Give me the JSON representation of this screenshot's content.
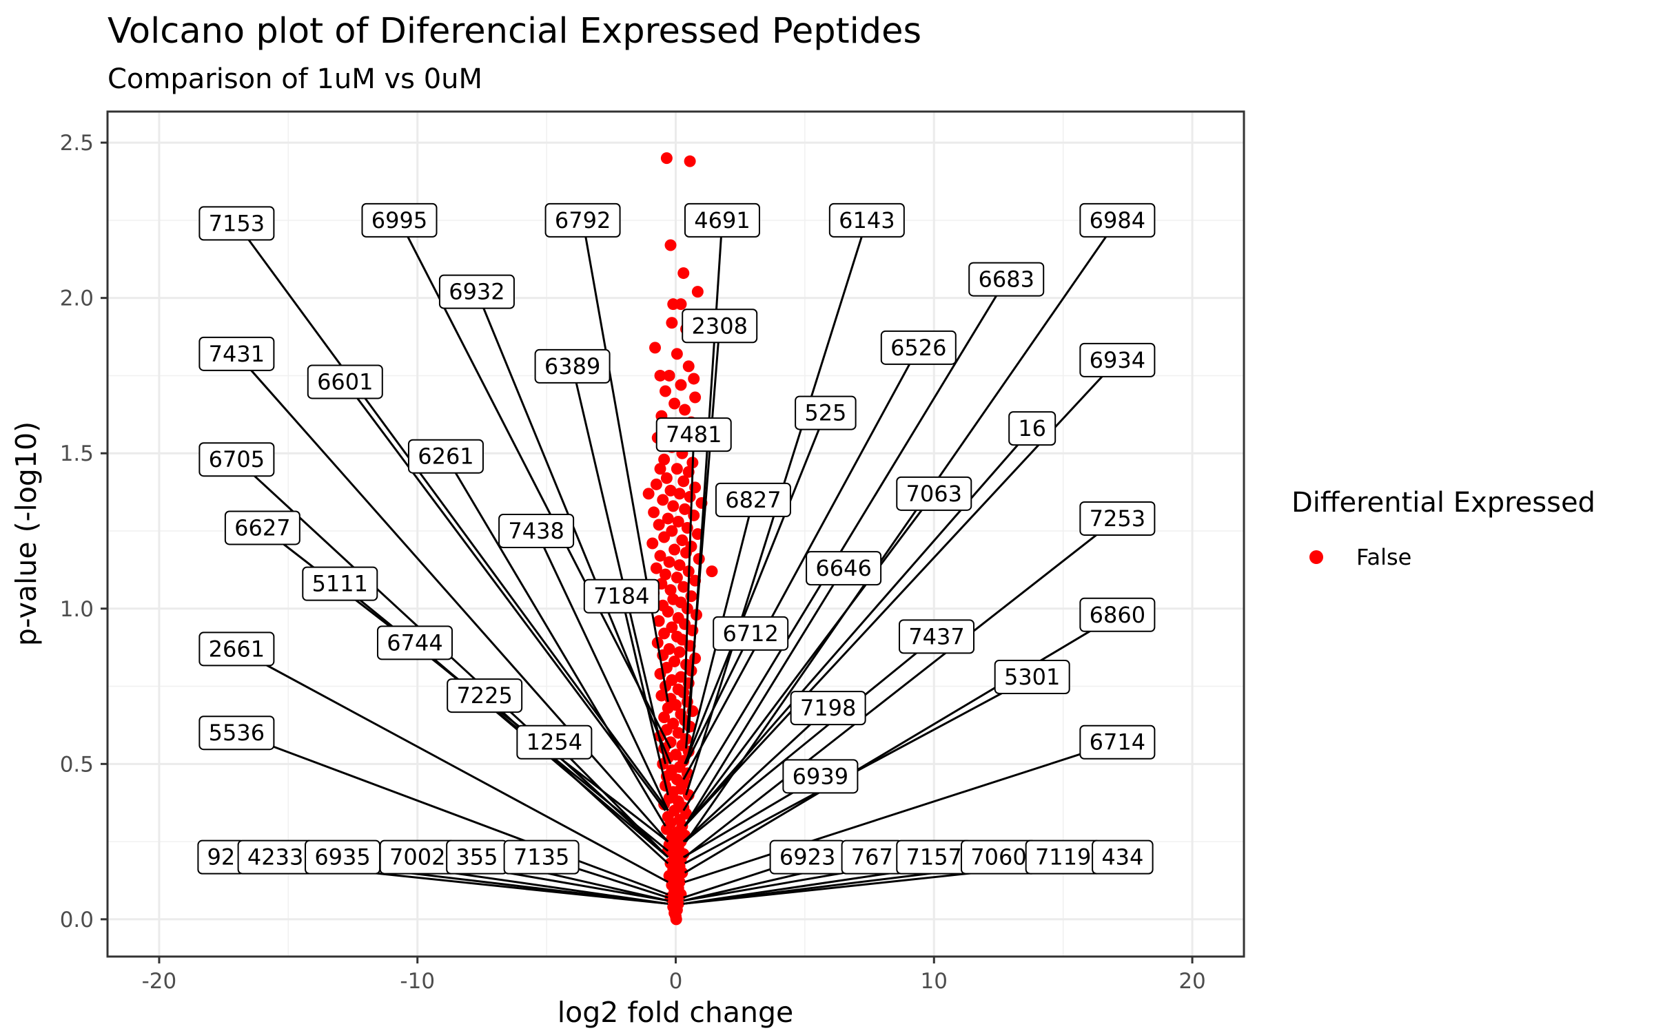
{
  "chart_data": {
    "type": "scatter",
    "title": "Volcano plot of Diferencial Expressed Peptides",
    "subtitle": "Comparison of 1uM vs 0uM",
    "xlabel": "log2 fold change",
    "ylabel": "p-value (-log10)",
    "xlim": [
      -22,
      22
    ],
    "ylim": [
      -0.12,
      2.6
    ],
    "x_ticks": [
      -20,
      -10,
      0,
      10,
      20
    ],
    "x_tick_labels": [
      "-20",
      "-10",
      "0",
      "10",
      "20"
    ],
    "y_ticks": [
      0.0,
      0.5,
      1.0,
      1.5,
      2.0,
      2.5
    ],
    "y_tick_labels": [
      "0.0",
      "0.5",
      "1.0",
      "1.5",
      "2.0",
      "2.5"
    ],
    "grid": true,
    "legend": {
      "title": "Differential Expressed",
      "position": "right",
      "entries": [
        {
          "label": "False",
          "color": "#ff0000"
        }
      ]
    },
    "series": [
      {
        "name": "False",
        "color": "#ff0000",
        "points": [
          [
            -0.35,
            2.45
          ],
          [
            0.55,
            2.44
          ],
          [
            -0.2,
            2.17
          ],
          [
            0.3,
            2.08
          ],
          [
            0.85,
            2.02
          ],
          [
            -0.1,
            1.98
          ],
          [
            0.2,
            1.98
          ],
          [
            -0.15,
            1.92
          ],
          [
            0.4,
            1.9
          ],
          [
            -0.8,
            1.84
          ],
          [
            0.05,
            1.82
          ],
          [
            0.5,
            1.78
          ],
          [
            -0.6,
            1.75
          ],
          [
            -0.25,
            1.75
          ],
          [
            0.7,
            1.74
          ],
          [
            0.2,
            1.72
          ],
          [
            -0.4,
            1.7
          ],
          [
            0.75,
            1.68
          ],
          [
            -0.05,
            1.66
          ],
          [
            0.35,
            1.64
          ],
          [
            -0.55,
            1.62
          ],
          [
            0.6,
            1.6
          ],
          [
            -0.3,
            1.58
          ],
          [
            0.1,
            1.57
          ],
          [
            -0.7,
            1.55
          ],
          [
            0.45,
            1.54
          ],
          [
            -0.15,
            1.52
          ],
          [
            0.25,
            1.5
          ],
          [
            -0.45,
            1.48
          ],
          [
            0.65,
            1.47
          ],
          [
            -0.6,
            1.45
          ],
          [
            0.05,
            1.45
          ],
          [
            0.5,
            1.44
          ],
          [
            -0.35,
            1.42
          ],
          [
            0.3,
            1.41
          ],
          [
            -0.75,
            1.4
          ],
          [
            0.75,
            1.39
          ],
          [
            -0.2,
            1.38
          ],
          [
            0.15,
            1.37
          ],
          [
            -1.05,
            1.37
          ],
          [
            0.55,
            1.36
          ],
          [
            -0.5,
            1.35
          ],
          [
            1.0,
            1.34
          ],
          [
            -0.1,
            1.33
          ],
          [
            0.35,
            1.32
          ],
          [
            -0.85,
            1.31
          ],
          [
            0.7,
            1.3
          ],
          [
            -0.3,
            1.29
          ],
          [
            0.1,
            1.28
          ],
          [
            -0.65,
            1.27
          ],
          [
            0.45,
            1.26
          ],
          [
            -0.15,
            1.25
          ],
          [
            0.85,
            1.24
          ],
          [
            -0.45,
            1.23
          ],
          [
            0.25,
            1.22
          ],
          [
            -0.9,
            1.21
          ],
          [
            0.6,
            1.2
          ],
          [
            -0.05,
            1.19
          ],
          [
            0.4,
            1.18
          ],
          [
            -0.6,
            1.17
          ],
          [
            0.9,
            1.16
          ],
          [
            -0.25,
            1.15
          ],
          [
            0.15,
            1.14
          ],
          [
            -0.75,
            1.13
          ],
          [
            1.4,
            1.12
          ],
          [
            0.5,
            1.12
          ],
          [
            -0.4,
            1.11
          ],
          [
            0.05,
            1.1
          ],
          [
            0.75,
            1.09
          ],
          [
            -0.55,
            1.08
          ],
          [
            0.3,
            1.07
          ],
          [
            -0.2,
            1.06
          ],
          [
            -0.85,
            1.05
          ],
          [
            0.6,
            1.04
          ],
          [
            -0.1,
            1.03
          ],
          [
            0.2,
            1.02
          ],
          [
            -0.5,
            1.01
          ],
          [
            0.45,
            1.0
          ],
          [
            -0.3,
            0.99
          ],
          [
            0.8,
            0.98
          ],
          [
            0.1,
            0.97
          ],
          [
            -0.65,
            0.96
          ],
          [
            0.35,
            0.95
          ],
          [
            -0.15,
            0.94
          ],
          [
            0.65,
            0.93
          ],
          [
            -0.45,
            0.92
          ],
          [
            0.05,
            0.91
          ],
          [
            0.25,
            0.9
          ],
          [
            -0.7,
            0.89
          ],
          [
            0.55,
            0.88
          ],
          [
            -0.25,
            0.87
          ],
          [
            0.15,
            0.86
          ],
          [
            -0.5,
            0.85
          ],
          [
            0.75,
            0.84
          ],
          [
            -0.05,
            0.83
          ],
          [
            0.4,
            0.82
          ],
          [
            -0.35,
            0.81
          ],
          [
            0.6,
            0.8
          ],
          [
            -0.6,
            0.79
          ],
          [
            0.2,
            0.78
          ],
          [
            -0.15,
            0.77
          ],
          [
            0.5,
            0.76
          ],
          [
            -0.4,
            0.75
          ],
          [
            0.1,
            0.74
          ],
          [
            0.3,
            0.73
          ],
          [
            -0.55,
            0.72
          ],
          [
            -0.2,
            0.71
          ],
          [
            0.45,
            0.7
          ],
          [
            0.0,
            0.69
          ],
          [
            -0.3,
            0.68
          ],
          [
            0.65,
            0.67
          ],
          [
            0.2,
            0.66
          ],
          [
            -0.45,
            0.65
          ],
          [
            0.35,
            0.64
          ],
          [
            -0.1,
            0.63
          ],
          [
            0.55,
            0.62
          ],
          [
            -0.35,
            0.61
          ],
          [
            0.1,
            0.6
          ],
          [
            -0.6,
            0.59
          ],
          [
            0.4,
            0.58
          ],
          [
            -0.2,
            0.57
          ],
          [
            0.25,
            0.56
          ],
          [
            -0.45,
            0.55
          ],
          [
            0.5,
            0.54
          ],
          [
            0.0,
            0.53
          ],
          [
            -0.3,
            0.52
          ],
          [
            0.3,
            0.51
          ],
          [
            -0.5,
            0.5
          ],
          [
            0.15,
            0.49
          ],
          [
            -0.15,
            0.48
          ],
          [
            0.45,
            0.47
          ],
          [
            -0.35,
            0.46
          ],
          [
            0.05,
            0.45
          ],
          [
            0.35,
            0.44
          ],
          [
            -0.4,
            0.43
          ],
          [
            0.2,
            0.42
          ],
          [
            -0.1,
            0.41
          ],
          [
            0.5,
            0.4
          ],
          [
            -0.25,
            0.39
          ],
          [
            0.1,
            0.38
          ],
          [
            -0.45,
            0.37
          ],
          [
            0.3,
            0.36
          ],
          [
            -0.05,
            0.35
          ],
          [
            0.4,
            0.34
          ],
          [
            -0.3,
            0.33
          ],
          [
            0.15,
            0.32
          ],
          [
            -0.2,
            0.31
          ],
          [
            0.25,
            0.3
          ],
          [
            -0.35,
            0.29
          ],
          [
            0.05,
            0.28
          ],
          [
            0.35,
            0.27
          ],
          [
            -0.15,
            0.26
          ],
          [
            0.2,
            0.25
          ],
          [
            -0.25,
            0.24
          ],
          [
            0.1,
            0.23
          ],
          [
            -0.3,
            0.22
          ],
          [
            0.3,
            0.21
          ],
          [
            -0.05,
            0.2
          ],
          [
            0.2,
            0.19
          ],
          [
            -0.2,
            0.18
          ],
          [
            0.15,
            0.17
          ],
          [
            -0.1,
            0.16
          ],
          [
            0.25,
            0.15
          ],
          [
            -0.25,
            0.14
          ],
          [
            0.05,
            0.13
          ],
          [
            0.15,
            0.12
          ],
          [
            -0.15,
            0.11
          ],
          [
            0.1,
            0.1
          ],
          [
            -0.05,
            0.09
          ],
          [
            0.2,
            0.08
          ],
          [
            -0.2,
            0.07
          ],
          [
            0.0,
            0.06
          ],
          [
            0.1,
            0.05
          ],
          [
            -0.1,
            0.04
          ],
          [
            0.05,
            0.03
          ],
          [
            -0.05,
            0.02
          ],
          [
            0.0,
            0.01
          ],
          [
            0.02,
            0.0
          ]
        ]
      }
    ],
    "labels": [
      {
        "text": "7153",
        "x": -17.0,
        "y": 2.24,
        "px": -0.3,
        "py": 0.35
      },
      {
        "text": "6995",
        "x": -10.7,
        "y": 2.25,
        "px": -0.2,
        "py": 0.55
      },
      {
        "text": "6792",
        "x": -3.6,
        "y": 2.25,
        "px": -0.3,
        "py": 0.7
      },
      {
        "text": "4691",
        "x": 1.8,
        "y": 2.25,
        "px": 0.5,
        "py": 0.6
      },
      {
        "text": "6143",
        "x": 7.4,
        "y": 2.25,
        "px": 0.4,
        "py": 0.4
      },
      {
        "text": "6984",
        "x": 17.1,
        "y": 2.25,
        "px": 0.4,
        "py": 0.25
      },
      {
        "text": "6932",
        "x": -7.7,
        "y": 2.02,
        "px": -0.2,
        "py": 0.5
      },
      {
        "text": "6683",
        "x": 12.8,
        "y": 2.06,
        "px": 0.3,
        "py": 0.35
      },
      {
        "text": "2308",
        "x": 1.7,
        "y": 1.91,
        "px": 0.4,
        "py": 0.55
      },
      {
        "text": "7431",
        "x": -17.0,
        "y": 1.82,
        "px": -0.3,
        "py": 0.25
      },
      {
        "text": "6526",
        "x": 9.4,
        "y": 1.84,
        "px": 0.3,
        "py": 0.45
      },
      {
        "text": "6934",
        "x": 17.1,
        "y": 1.8,
        "px": 0.35,
        "py": 0.3
      },
      {
        "text": "6389",
        "x": -4.0,
        "y": 1.78,
        "px": -0.4,
        "py": 0.5
      },
      {
        "text": "6601",
        "x": -12.8,
        "y": 1.73,
        "px": -0.4,
        "py": 0.35
      },
      {
        "text": "525",
        "x": 5.8,
        "y": 1.63,
        "px": 0.35,
        "py": 0.5
      },
      {
        "text": "16",
        "x": 13.8,
        "y": 1.58,
        "px": 0.35,
        "py": 0.3
      },
      {
        "text": "7481",
        "x": 0.7,
        "y": 1.56,
        "px": 0.3,
        "py": 0.6
      },
      {
        "text": "6705",
        "x": -17.0,
        "y": 1.48,
        "px": -0.3,
        "py": 0.2
      },
      {
        "text": "6261",
        "x": -8.9,
        "y": 1.49,
        "px": -0.4,
        "py": 0.3
      },
      {
        "text": "7063",
        "x": 10.0,
        "y": 1.37,
        "px": 0.35,
        "py": 0.3
      },
      {
        "text": "6827",
        "x": 3.0,
        "y": 1.35,
        "px": 0.4,
        "py": 0.5
      },
      {
        "text": "7253",
        "x": 17.1,
        "y": 1.29,
        "px": 0.35,
        "py": 0.2
      },
      {
        "text": "6627",
        "x": -16.0,
        "y": 1.26,
        "px": -0.3,
        "py": 0.25
      },
      {
        "text": "7438",
        "x": -5.4,
        "y": 1.25,
        "px": -0.3,
        "py": 0.35
      },
      {
        "text": "6646",
        "x": 6.5,
        "y": 1.13,
        "px": 0.35,
        "py": 0.3
      },
      {
        "text": "5111",
        "x": -13.0,
        "y": 1.08,
        "px": -0.3,
        "py": 0.22
      },
      {
        "text": "7184",
        "x": -2.1,
        "y": 1.04,
        "px": -0.3,
        "py": 0.4
      },
      {
        "text": "6860",
        "x": 17.1,
        "y": 0.98,
        "px": 0.35,
        "py": 0.15
      },
      {
        "text": "6712",
        "x": 2.9,
        "y": 0.92,
        "px": 0.4,
        "py": 0.5
      },
      {
        "text": "7437",
        "x": 10.1,
        "y": 0.91,
        "px": 0.35,
        "py": 0.25
      },
      {
        "text": "6744",
        "x": -10.1,
        "y": 0.89,
        "px": -0.3,
        "py": 0.2
      },
      {
        "text": "2661",
        "x": -17.0,
        "y": 0.87,
        "px": -0.3,
        "py": 0.12
      },
      {
        "text": "5301",
        "x": 13.8,
        "y": 0.78,
        "px": 0.35,
        "py": 0.18
      },
      {
        "text": "7225",
        "x": -7.4,
        "y": 0.72,
        "px": -0.3,
        "py": 0.18
      },
      {
        "text": "7198",
        "x": 5.9,
        "y": 0.68,
        "px": 0.3,
        "py": 0.25
      },
      {
        "text": "1254",
        "x": -4.7,
        "y": 0.57,
        "px": -0.3,
        "py": 0.2
      },
      {
        "text": "6714",
        "x": 17.1,
        "y": 0.57,
        "px": 0.35,
        "py": 0.12
      },
      {
        "text": "5536",
        "x": -17.0,
        "y": 0.6,
        "px": -0.3,
        "py": 0.08
      },
      {
        "text": "6939",
        "x": 5.6,
        "y": 0.46,
        "px": 0.3,
        "py": 0.2
      },
      {
        "text": "92",
        "x": -17.6,
        "y": 0.2,
        "px": -0.3,
        "py": 0.05
      },
      {
        "text": "4233",
        "x": -15.5,
        "y": 0.2,
        "px": -0.3,
        "py": 0.05
      },
      {
        "text": "6935",
        "x": -12.9,
        "y": 0.2,
        "px": -0.3,
        "py": 0.05
      },
      {
        "text": "7002",
        "x": -10.0,
        "y": 0.2,
        "px": -0.3,
        "py": 0.06
      },
      {
        "text": "355",
        "x": -7.7,
        "y": 0.2,
        "px": -0.3,
        "py": 0.06
      },
      {
        "text": "7135",
        "x": -5.2,
        "y": 0.2,
        "px": -0.3,
        "py": 0.07
      },
      {
        "text": "6923",
        "x": 5.1,
        "y": 0.2,
        "px": 0.3,
        "py": 0.07
      },
      {
        "text": "767",
        "x": 7.6,
        "y": 0.2,
        "px": 0.3,
        "py": 0.06
      },
      {
        "text": "7157",
        "x": 10.0,
        "y": 0.2,
        "px": 0.3,
        "py": 0.06
      },
      {
        "text": "7060",
        "x": 12.5,
        "y": 0.2,
        "px": 0.3,
        "py": 0.05
      },
      {
        "text": "7119",
        "x": 15.0,
        "y": 0.2,
        "px": 0.3,
        "py": 0.05
      },
      {
        "text": "434",
        "x": 17.3,
        "y": 0.2,
        "px": 0.3,
        "py": 0.05
      }
    ]
  }
}
